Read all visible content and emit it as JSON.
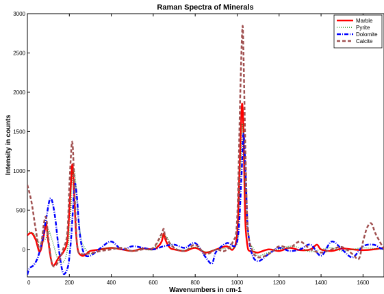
{
  "chart_data": {
    "type": "line",
    "title": "Raman Spectra of Minerals",
    "xlabel": "Wavenumbers in cm-1",
    "ylabel": "Intensity in counts",
    "xlim": [
      0,
      1700
    ],
    "ylim": [
      -350,
      3000
    ],
    "xticks": [
      0,
      200,
      400,
      600,
      800,
      1000,
      1200,
      1400,
      1600
    ],
    "yticks": [
      0,
      500,
      1000,
      1500,
      2000,
      2500,
      3000
    ],
    "grid": false,
    "legend_position": "top-right",
    "series": [
      {
        "name": "Marble",
        "color": "#ff0000",
        "style": "solid",
        "x": [
          0,
          20,
          40,
          60,
          80,
          90,
          100,
          120,
          150,
          170,
          190,
          200,
          210,
          215,
          220,
          230,
          240,
          260,
          280,
          300,
          350,
          400,
          450,
          500,
          550,
          600,
          620,
          640,
          650,
          660,
          680,
          700,
          750,
          800,
          850,
          900,
          950,
          980,
          1000,
          1010,
          1020,
          1025,
          1030,
          1035,
          1040,
          1050,
          1060,
          1080,
          1100,
          1150,
          1200,
          1250,
          1300,
          1350,
          1380,
          1400,
          1450,
          1500,
          1550,
          1600,
          1650,
          1700
        ],
        "y": [
          180,
          210,
          120,
          -30,
          200,
          320,
          100,
          -200,
          -100,
          -40,
          100,
          500,
          950,
          1080,
          900,
          300,
          0,
          -80,
          -60,
          -20,
          0,
          20,
          0,
          -20,
          10,
          0,
          30,
          100,
          200,
          110,
          20,
          0,
          -20,
          20,
          -40,
          0,
          40,
          0,
          200,
          900,
          1700,
          1840,
          1500,
          800,
          300,
          30,
          -20,
          -30,
          -40,
          0,
          -20,
          20,
          -10,
          0,
          60,
          0,
          -20,
          10,
          0,
          -10,
          0,
          20
        ]
      },
      {
        "name": "Pyrite",
        "color": "#228b22",
        "style": "dotted",
        "x": [
          0,
          30,
          60,
          90,
          100,
          120,
          150,
          180,
          200,
          215,
          225,
          240,
          260,
          300,
          350,
          400,
          450,
          500,
          550,
          600,
          650,
          700,
          750,
          800,
          850,
          900,
          950,
          1000,
          1015,
          1025,
          1035,
          1050,
          1080,
          1100,
          1150,
          1200,
          1250,
          1300,
          1350,
          1400,
          1450,
          1500,
          1550,
          1600,
          1650,
          1700
        ],
        "y": [
          230,
          200,
          80,
          150,
          250,
          100,
          -150,
          -120,
          200,
          900,
          1000,
          500,
          100,
          -50,
          0,
          20,
          0,
          -20,
          10,
          0,
          180,
          20,
          -10,
          30,
          -30,
          0,
          20,
          100,
          900,
          1600,
          1000,
          200,
          0,
          -80,
          -40,
          0,
          40,
          20,
          -30,
          0,
          20,
          -20,
          0,
          20,
          10,
          0
        ]
      },
      {
        "name": "Dolomite",
        "color": "#0000ff",
        "style": "dashdot",
        "x": [
          0,
          10,
          30,
          50,
          70,
          90,
          110,
          130,
          150,
          170,
          190,
          200,
          210,
          225,
          235,
          250,
          270,
          300,
          350,
          400,
          450,
          500,
          550,
          600,
          650,
          700,
          750,
          800,
          850,
          880,
          900,
          950,
          1000,
          1020,
          1030,
          1040,
          1050,
          1070,
          1100,
          1150,
          1200,
          1250,
          1300,
          1350,
          1400,
          1450,
          1500,
          1550,
          1600,
          1650,
          1680,
          1700
        ],
        "y": [
          -320,
          -240,
          -200,
          -100,
          100,
          400,
          650,
          450,
          0,
          -300,
          -250,
          -100,
          200,
          800,
          700,
          200,
          -50,
          -80,
          20,
          100,
          0,
          40,
          20,
          0,
          40,
          60,
          20,
          80,
          -100,
          -180,
          -30,
          80,
          100,
          900,
          1470,
          1000,
          300,
          -50,
          -150,
          -60,
          20,
          -20,
          0,
          60,
          -80,
          100,
          0,
          -100,
          40,
          60,
          20,
          0
        ]
      },
      {
        "name": "Calcite",
        "color": "#a05050",
        "style": "dashed",
        "x": [
          0,
          20,
          40,
          60,
          80,
          90,
          100,
          120,
          150,
          170,
          190,
          200,
          210,
          215,
          220,
          230,
          240,
          260,
          300,
          350,
          400,
          450,
          500,
          550,
          600,
          640,
          650,
          660,
          700,
          750,
          800,
          850,
          900,
          940,
          980,
          1000,
          1015,
          1025,
          1030,
          1040,
          1050,
          1070,
          1100,
          1150,
          1200,
          1250,
          1300,
          1350,
          1400,
          1450,
          1500,
          1550,
          1580,
          1600,
          1620,
          1640,
          1660,
          1700
        ],
        "y": [
          820,
          600,
          250,
          0,
          350,
          400,
          150,
          -200,
          -150,
          0,
          200,
          800,
          1300,
          1350,
          1100,
          400,
          0,
          -60,
          -50,
          -20,
          0,
          20,
          -20,
          0,
          20,
          200,
          260,
          150,
          20,
          -20,
          60,
          -60,
          0,
          -20,
          100,
          400,
          2000,
          2820,
          2500,
          1200,
          300,
          0,
          -100,
          -60,
          40,
          20,
          100,
          0,
          -40,
          0,
          30,
          -60,
          -120,
          100,
          280,
          330,
          200,
          0
        ]
      }
    ]
  }
}
